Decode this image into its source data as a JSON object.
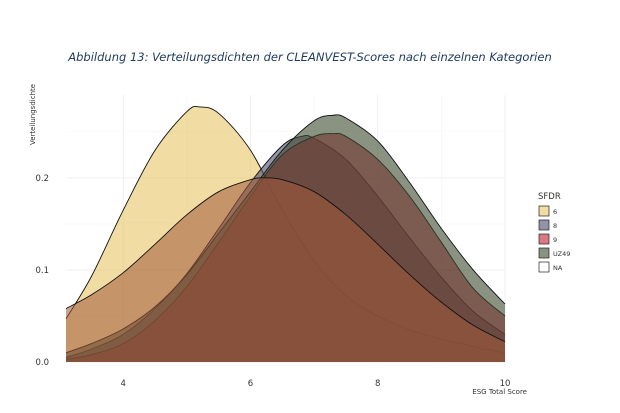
{
  "caption": "Abbildung 13: Verteilungsdichten der CLEANVEST-Scores nach einzelnen Kategorien",
  "chart_data": {
    "type": "area",
    "title": "",
    "xlabel": "ESG Total Score",
    "ylabel": "Verteilungsdichte",
    "xlim": [
      3.1,
      10.0
    ],
    "ylim": [
      0.0,
      0.29
    ],
    "x_ticks": [
      4,
      6,
      8,
      10
    ],
    "y_ticks": [
      0.0,
      0.1,
      0.2
    ],
    "x_tick_labels": [
      "4",
      "6",
      "8",
      "10"
    ],
    "y_tick_labels": [
      "0.0",
      "0.1",
      "0.2"
    ],
    "grid": true,
    "legend": {
      "title": "SFDR",
      "placement": "right"
    },
    "series": [
      {
        "name": "6",
        "color": "#e8c565",
        "points": [
          [
            3.1,
            0.047
          ],
          [
            3.5,
            0.093
          ],
          [
            4.0,
            0.165
          ],
          [
            4.5,
            0.23
          ],
          [
            5.0,
            0.272
          ],
          [
            5.2,
            0.277
          ],
          [
            5.5,
            0.27
          ],
          [
            6.0,
            0.23
          ],
          [
            6.5,
            0.165
          ],
          [
            7.0,
            0.11
          ],
          [
            7.5,
            0.072
          ],
          [
            8.0,
            0.05
          ],
          [
            8.5,
            0.035
          ],
          [
            9.0,
            0.025
          ],
          [
            9.5,
            0.017
          ],
          [
            10.0,
            0.01
          ]
        ]
      },
      {
        "name": "8",
        "color": "#4b4b6e",
        "points": [
          [
            3.1,
            0.005
          ],
          [
            3.5,
            0.014
          ],
          [
            4.0,
            0.03
          ],
          [
            4.5,
            0.058
          ],
          [
            5.0,
            0.096
          ],
          [
            5.5,
            0.145
          ],
          [
            6.0,
            0.195
          ],
          [
            6.5,
            0.235
          ],
          [
            6.8,
            0.245
          ],
          [
            7.0,
            0.243
          ],
          [
            7.5,
            0.22
          ],
          [
            8.0,
            0.18
          ],
          [
            8.5,
            0.135
          ],
          [
            9.0,
            0.092
          ],
          [
            9.5,
            0.055
          ],
          [
            10.0,
            0.03
          ]
        ]
      },
      {
        "name": "9",
        "color": "#c41e2e",
        "points": [
          [
            3.1,
            0.003
          ],
          [
            3.5,
            0.008
          ],
          [
            4.0,
            0.02
          ],
          [
            4.5,
            0.045
          ],
          [
            5.0,
            0.082
          ],
          [
            5.5,
            0.13
          ],
          [
            6.0,
            0.18
          ],
          [
            6.5,
            0.225
          ],
          [
            7.0,
            0.245
          ],
          [
            7.3,
            0.248
          ],
          [
            7.5,
            0.245
          ],
          [
            8.0,
            0.22
          ],
          [
            8.5,
            0.18
          ],
          [
            9.0,
            0.13
          ],
          [
            9.5,
            0.08
          ],
          [
            10.0,
            0.05
          ]
        ]
      },
      {
        "name": "UZ49",
        "color": "#3c4a2e",
        "points": [
          [
            3.1,
            0.01
          ],
          [
            3.5,
            0.02
          ],
          [
            4.0,
            0.036
          ],
          [
            4.5,
            0.06
          ],
          [
            5.0,
            0.095
          ],
          [
            5.5,
            0.14
          ],
          [
            6.0,
            0.185
          ],
          [
            6.5,
            0.23
          ],
          [
            7.0,
            0.262
          ],
          [
            7.3,
            0.268
          ],
          [
            7.5,
            0.265
          ],
          [
            8.0,
            0.24
          ],
          [
            8.5,
            0.195
          ],
          [
            9.0,
            0.145
          ],
          [
            9.5,
            0.1
          ],
          [
            10.0,
            0.063
          ]
        ]
      },
      {
        "name": "NA",
        "color": "#ffffff",
        "points": [
          [
            3.1,
            0.058
          ],
          [
            3.5,
            0.073
          ],
          [
            4.0,
            0.097
          ],
          [
            4.5,
            0.128
          ],
          [
            5.0,
            0.16
          ],
          [
            5.5,
            0.185
          ],
          [
            6.0,
            0.198
          ],
          [
            6.2,
            0.2
          ],
          [
            6.5,
            0.198
          ],
          [
            7.0,
            0.185
          ],
          [
            7.5,
            0.16
          ],
          [
            8.0,
            0.128
          ],
          [
            8.5,
            0.095
          ],
          [
            9.0,
            0.065
          ],
          [
            9.5,
            0.04
          ],
          [
            10.0,
            0.022
          ]
        ]
      }
    ]
  }
}
